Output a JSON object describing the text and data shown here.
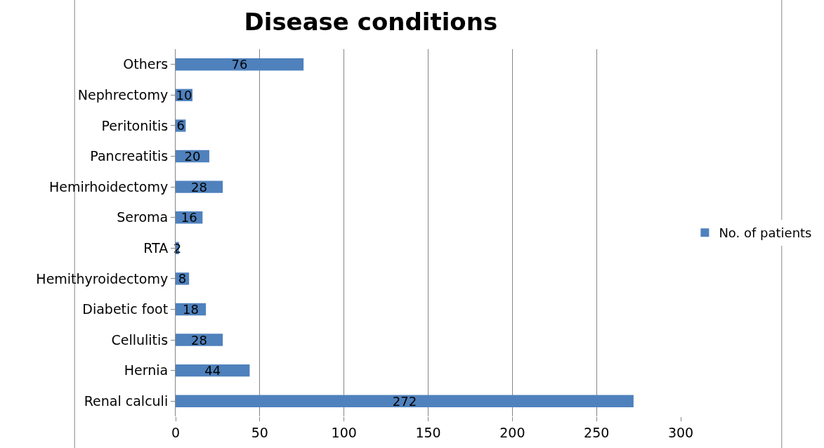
{
  "chart_data": {
    "type": "bar",
    "orientation": "horizontal",
    "title": "Disease conditions",
    "categories": [
      "Others",
      "Nephrectomy",
      "Peritonitis",
      "Pancreatitis",
      "Hemirhoidectomy",
      "Seroma",
      "RTA",
      "Hemithyroidectomy",
      "Diabetic foot",
      "Cellulitis",
      "Hernia",
      "Renal calculi"
    ],
    "series": [
      {
        "name": "No. of patients",
        "color": "#4f81bd",
        "values": [
          76,
          10,
          6,
          20,
          28,
          16,
          2,
          8,
          18,
          28,
          44,
          272
        ]
      }
    ],
    "xlim": [
      0,
      300
    ],
    "xticks": [
      0,
      50,
      100,
      150,
      200,
      250,
      300
    ],
    "grid": "x",
    "legend": "right",
    "data_labels": true
  }
}
